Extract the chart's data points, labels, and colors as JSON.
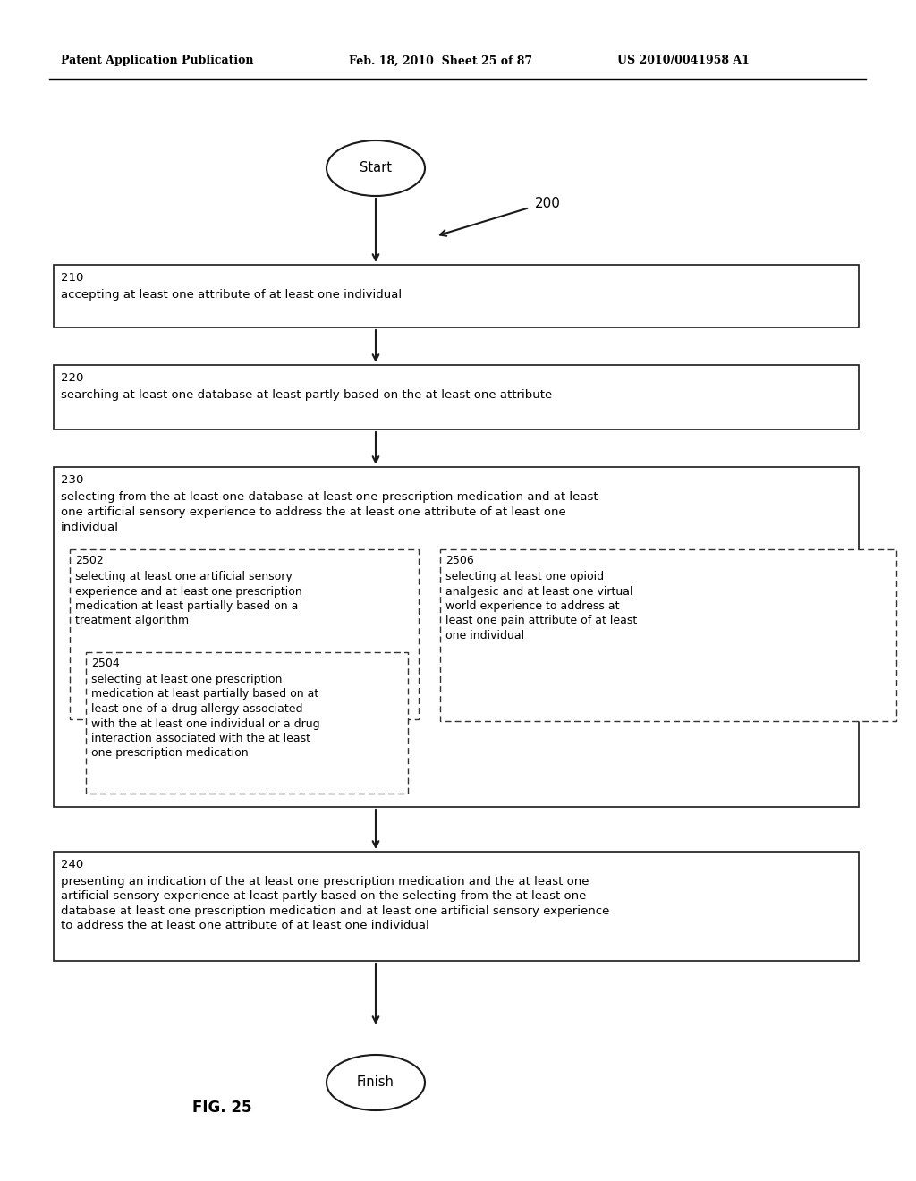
{
  "header_left": "Patent Application Publication",
  "header_center": "Feb. 18, 2010  Sheet 25 of 87",
  "header_right": "US 2010/0041958 A1",
  "background_color": "#ffffff",
  "text_color": "#000000",
  "fig_label": "FIG. 25",
  "diagram_ref": "200",
  "start_label": "Start",
  "finish_label": "Finish",
  "box210_num": "210",
  "box210_text": "accepting at least one attribute of at least one individual",
  "box220_num": "220",
  "box220_text": "searching at least one database at least partly based on the at least one attribute",
  "box230_num": "230",
  "box230_text": "selecting from the at least one database at least one prescription medication and at least\none artificial sensory experience to address the at least one attribute of at least one\nindividual",
  "box2502_num": "2502",
  "box2502_text": "selecting at least one artificial sensory\nexperience and at least one prescription\nmedication at least partially based on a\ntreatment algorithm",
  "box2504_num": "2504",
  "box2504_text": "selecting at least one prescription\nmedication at least partially based on at\nleast one of a drug allergy associated\nwith the at least one individual or a drug\ninteraction associated with the at least\none prescription medication",
  "box2506_num": "2506",
  "box2506_text": "selecting at least one opioid\nanalgesic and at least one virtual\nworld experience to address at\nleast one pain attribute of at least\none individual",
  "box240_num": "240",
  "box240_text": "presenting an indication of the at least one prescription medication and the at least one\nartificial sensory experience at least partly based on the selecting from the at least one\ndatabase at least one prescription medication and at least one artificial sensory experience\nto address the at least one attribute of at least one individual"
}
